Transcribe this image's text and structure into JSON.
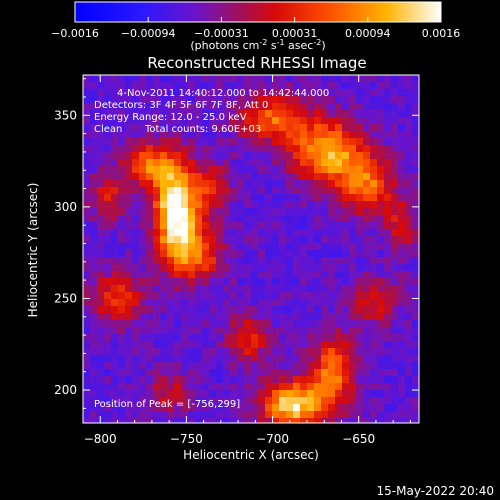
{
  "chart_data": {
    "type": "heatmap",
    "title": "Reconstructed RHESSI Image",
    "xlabel": "Heliocentric X (arcsec)",
    "ylabel": "Heliocentric Y (arcsec)",
    "xlim": [
      -810,
      -615
    ],
    "ylim": [
      182,
      372
    ],
    "xticks": [
      -800,
      -750,
      -700,
      -650
    ],
    "yticks": [
      200,
      250,
      300,
      350
    ],
    "colorbar": {
      "min": -0.0016,
      "max": 0.0016,
      "ticks": [
        "-0.0016",
        "-0.00094",
        "-0.00031",
        "0.00031",
        "0.00094",
        "0.0016"
      ],
      "label": "(photons cm⁻² s⁻¹ asec⁻²)",
      "label_parts": {
        "a": "(photons cm",
        "b": "-2",
        "c": " s",
        "d": "-1",
        "e": " asec",
        "f": "-2",
        "g": ")"
      }
    },
    "annotations": {
      "time_range": "4-Nov-2011 14:40:12.000 to 14:42:44.000",
      "detectors": "Detectors: 3F 4F 5F 6F 7F 8F, Att 0",
      "energy": "Energy Range: 12.0 - 25.0 keV",
      "clean": "Clean",
      "total_counts": "Total counts: 9.60E+03",
      "peak": "Position of Peak = [-756,299]"
    },
    "peak_position": [
      -756,
      299
    ],
    "sources": [
      {
        "x": -756,
        "y": 299,
        "sx": 9,
        "sy": 18,
        "amp": 1.0
      },
      {
        "x": -773,
        "y": 323,
        "sx": 10,
        "sy": 8,
        "amp": 0.55
      },
      {
        "x": -745,
        "y": 274,
        "sx": 12,
        "sy": 10,
        "amp": 0.5
      },
      {
        "x": -735,
        "y": 310,
        "sx": 8,
        "sy": 10,
        "amp": 0.35
      },
      {
        "x": -700,
        "y": 348,
        "sx": 14,
        "sy": 9,
        "amp": 0.55
      },
      {
        "x": -668,
        "y": 330,
        "sx": 14,
        "sy": 12,
        "amp": 0.75
      },
      {
        "x": -645,
        "y": 312,
        "sx": 11,
        "sy": 11,
        "amp": 0.55
      },
      {
        "x": -625,
        "y": 290,
        "sx": 7,
        "sy": 10,
        "amp": 0.35
      },
      {
        "x": -688,
        "y": 192,
        "sx": 13,
        "sy": 9,
        "amp": 0.85
      },
      {
        "x": -665,
        "y": 210,
        "sx": 9,
        "sy": 14,
        "amp": 0.6
      },
      {
        "x": -715,
        "y": 228,
        "sx": 9,
        "sy": 9,
        "amp": 0.4
      },
      {
        "x": -790,
        "y": 250,
        "sx": 11,
        "sy": 10,
        "amp": 0.45
      },
      {
        "x": -795,
        "y": 305,
        "sx": 8,
        "sy": 9,
        "amp": 0.35
      },
      {
        "x": -760,
        "y": 198,
        "sx": 9,
        "sy": 8,
        "amp": 0.3
      },
      {
        "x": -640,
        "y": 248,
        "sx": 10,
        "sy": 9,
        "amp": 0.35
      }
    ]
  },
  "footer": {
    "date": "15-May-2022 20:40"
  }
}
